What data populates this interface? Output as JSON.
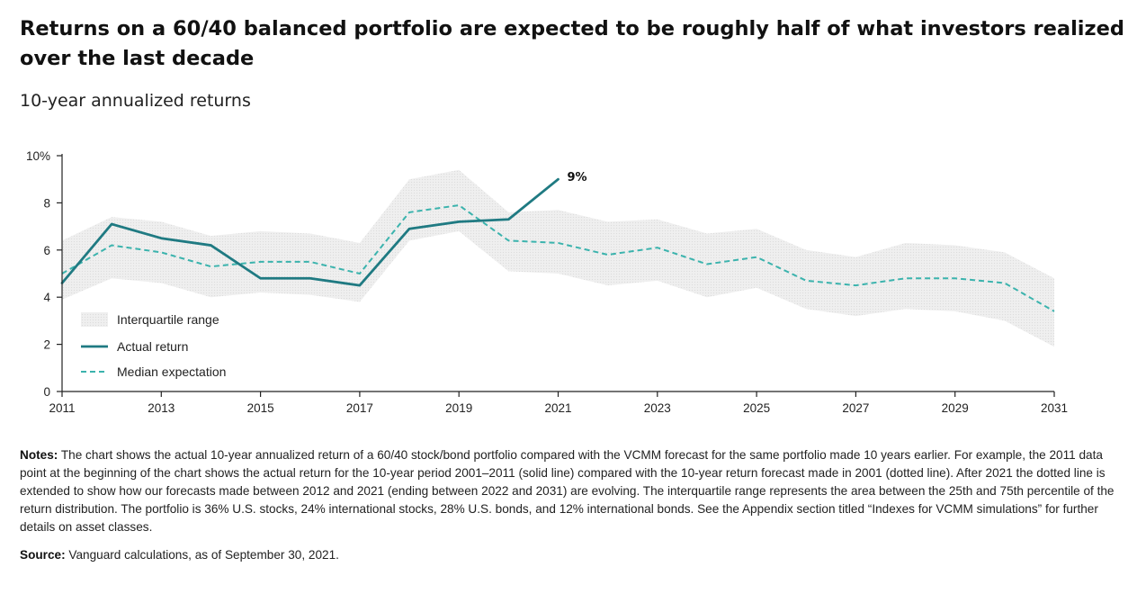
{
  "header": {
    "title": "Returns on a 60/40 balanced portfolio are expected to be roughly half of what investors realized over the last decade",
    "subtitle": "10-year annualized returns"
  },
  "footer": {
    "notes_label": "Notes:",
    "notes_text": "The chart shows the actual 10-year annualized return of a 60/40 stock/bond portfolio compared with the VCMM forecast for the same portfolio made 10 years earlier. For example, the 2011 data point at the beginning of the chart shows the actual return for the 10-year period 2001–2011 (solid line) compared with the 10-year return forecast made in 2001 (dotted line). After 2021 the dotted line is extended to show how our forecasts made between 2012 and 2021 (ending between 2022 and 2031) are evolving. The interquartile range represents the area between the 25th and 75th percentile of the return distribution. The portfolio is 36% U.S. stocks, 24% international stocks, 28% U.S. bonds, and 12% international bonds. See the Appendix section titled “Indexes for VCMM simulations” for further details on asset classes.",
    "source_label": "Source:",
    "source_text": "Vanguard calculations, as of September 30, 2021."
  },
  "colors": {
    "actual": "#1f7a82",
    "median": "#3bb3ad",
    "band": "#ececec",
    "axis": "#222222"
  },
  "chart_data": {
    "type": "line",
    "title": "Returns on a 60/40 balanced portfolio are expected to be roughly half of what investors realized over the last decade",
    "subtitle": "10-year annualized returns",
    "xlim": [
      2011,
      2031
    ],
    "ylim": [
      0,
      10
    ],
    "x_ticks": [
      "2011",
      "2013",
      "2015",
      "2017",
      "2019",
      "2021",
      "2023",
      "2025",
      "2027",
      "2029",
      "2031"
    ],
    "y_ticks": [
      "0",
      "2",
      "4",
      "6",
      "8",
      "10%"
    ],
    "y_tick_values": [
      0,
      2,
      4,
      6,
      8,
      10
    ],
    "legend_position": "bottom-left",
    "grid": false,
    "series": [
      {
        "name": "Interquartile range",
        "kind": "band",
        "x": [
          2011,
          2012,
          2013,
          2014,
          2015,
          2016,
          2017,
          2018,
          2019,
          2020,
          2021,
          2022,
          2023,
          2024,
          2025,
          2026,
          2027,
          2028,
          2029,
          2030,
          2031
        ],
        "upper": [
          6.4,
          7.4,
          7.2,
          6.6,
          6.8,
          6.7,
          6.3,
          9.0,
          9.4,
          7.6,
          7.7,
          7.2,
          7.3,
          6.7,
          6.9,
          6.0,
          5.7,
          6.3,
          6.2,
          5.9,
          4.8
        ],
        "lower": [
          3.9,
          4.8,
          4.6,
          4.0,
          4.2,
          4.1,
          3.8,
          6.4,
          6.8,
          5.1,
          5.0,
          4.5,
          4.7,
          4.0,
          4.4,
          3.5,
          3.2,
          3.5,
          3.4,
          3.0,
          1.9
        ]
      },
      {
        "name": "Actual return",
        "kind": "line",
        "x": [
          2011,
          2012,
          2013,
          2014,
          2015,
          2016,
          2017,
          2018,
          2019,
          2020,
          2021
        ],
        "values": [
          4.6,
          7.1,
          6.5,
          6.2,
          4.8,
          4.8,
          4.5,
          6.9,
          7.2,
          7.3,
          9.0
        ]
      },
      {
        "name": "Median expectation",
        "kind": "dashed-line",
        "x": [
          2011,
          2012,
          2013,
          2014,
          2015,
          2016,
          2017,
          2018,
          2019,
          2020,
          2021,
          2022,
          2023,
          2024,
          2025,
          2026,
          2027,
          2028,
          2029,
          2030,
          2031
        ],
        "values": [
          5.0,
          6.2,
          5.9,
          5.3,
          5.5,
          5.5,
          5.0,
          7.6,
          7.9,
          6.4,
          6.3,
          5.8,
          6.1,
          5.4,
          5.7,
          4.7,
          4.5,
          4.8,
          4.8,
          4.6,
          3.4
        ]
      }
    ],
    "annotations": [
      {
        "text": "9%",
        "x": 2021,
        "y": 9.0
      }
    ]
  }
}
